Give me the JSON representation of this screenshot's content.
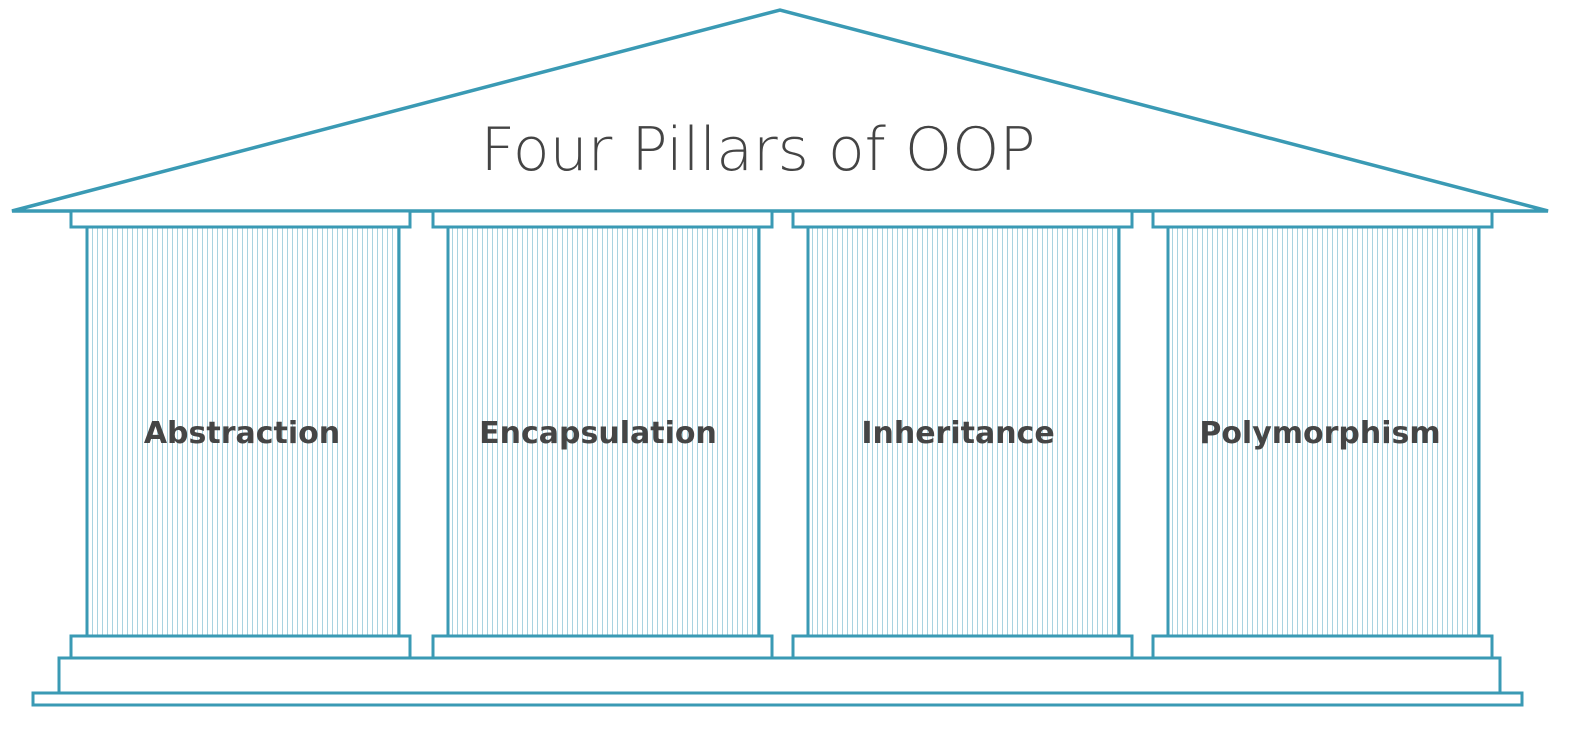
{
  "diagram": {
    "title": "Four Pillars of OOP",
    "accent_color": "#3a9ab4",
    "fluting_color": "#a9d3e0",
    "text_color": "#444444",
    "pillars": [
      {
        "label": "Abstraction"
      },
      {
        "label": "Encapsulation"
      },
      {
        "label": "Inheritance"
      },
      {
        "label": "Polymorphism"
      }
    ]
  }
}
